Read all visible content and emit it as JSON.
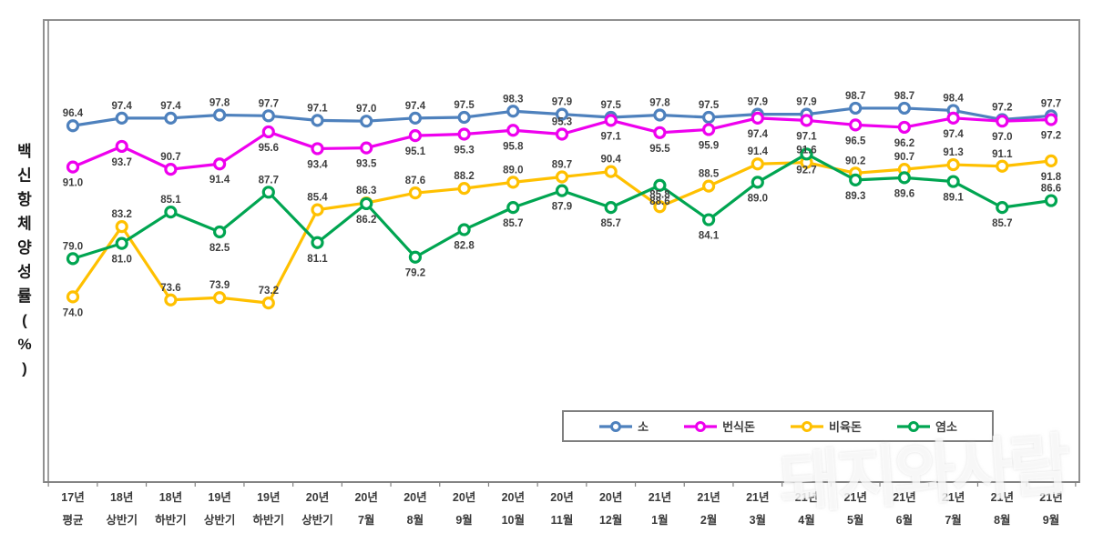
{
  "chart_data": {
    "type": "line",
    "title": "",
    "xlabel": "",
    "ylabel": "백신항체양성률(%)",
    "ylim": [
      50,
      100
    ],
    "grid": false,
    "legend_position": "bottom-center-box",
    "categories": [
      [
        "17년",
        "평균"
      ],
      [
        "18년",
        "상반기"
      ],
      [
        "18년",
        "하반기"
      ],
      [
        "19년",
        "상반기"
      ],
      [
        "19년",
        "하반기"
      ],
      [
        "20년",
        "상반기"
      ],
      [
        "20년",
        "7월"
      ],
      [
        "20년",
        "8월"
      ],
      [
        "20년",
        "9월"
      ],
      [
        "20년",
        "10월"
      ],
      [
        "20년",
        "11월"
      ],
      [
        "20년",
        "12월"
      ],
      [
        "21년",
        "1월"
      ],
      [
        "21년",
        "2월"
      ],
      [
        "21년",
        "3월"
      ],
      [
        "21년",
        "4월"
      ],
      [
        "21년",
        "5월"
      ],
      [
        "21년",
        "6월"
      ],
      [
        "21년",
        "7월"
      ],
      [
        "21년",
        "8월"
      ],
      [
        "21년",
        "9월"
      ]
    ],
    "series": [
      {
        "name": "소",
        "color": "#4E81BD",
        "label_side": "above",
        "label_side_exceptions": [],
        "values": [
          96.4,
          97.4,
          97.4,
          97.8,
          97.7,
          97.1,
          97.0,
          97.4,
          97.5,
          98.3,
          97.9,
          97.5,
          97.8,
          97.5,
          97.9,
          97.9,
          98.7,
          98.7,
          98.4,
          97.2,
          97.7
        ]
      },
      {
        "name": "번식돈",
        "color": "#EE00EE",
        "label_side": "below",
        "label_side_exceptions": [
          2,
          10
        ],
        "values": [
          91.0,
          93.7,
          90.7,
          91.4,
          95.6,
          93.4,
          93.5,
          95.1,
          95.3,
          95.8,
          95.3,
          97.1,
          95.5,
          95.9,
          97.4,
          97.1,
          96.5,
          96.2,
          97.4,
          97.0,
          97.2
        ]
      },
      {
        "name": "비육돈",
        "color": "#FFC000",
        "label_side": "above",
        "label_side_exceptions": [
          0,
          20
        ],
        "values": [
          74.0,
          83.2,
          73.6,
          73.9,
          73.2,
          85.4,
          86.3,
          87.6,
          88.2,
          89.0,
          89.7,
          90.4,
          85.8,
          88.5,
          91.4,
          91.6,
          90.2,
          90.7,
          91.3,
          91.1,
          91.8
        ]
      },
      {
        "name": "염소",
        "color": "#00A551",
        "label_side": "below",
        "label_side_exceptions": [
          0,
          2,
          4,
          20
        ],
        "values": [
          79.0,
          81.0,
          85.1,
          82.5,
          87.7,
          81.1,
          86.2,
          79.2,
          82.8,
          85.7,
          87.9,
          85.7,
          88.6,
          84.1,
          89.0,
          92.7,
          89.3,
          89.6,
          89.1,
          85.7,
          86.6
        ]
      }
    ]
  },
  "watermark": {
    "text": "돼지와사람"
  }
}
